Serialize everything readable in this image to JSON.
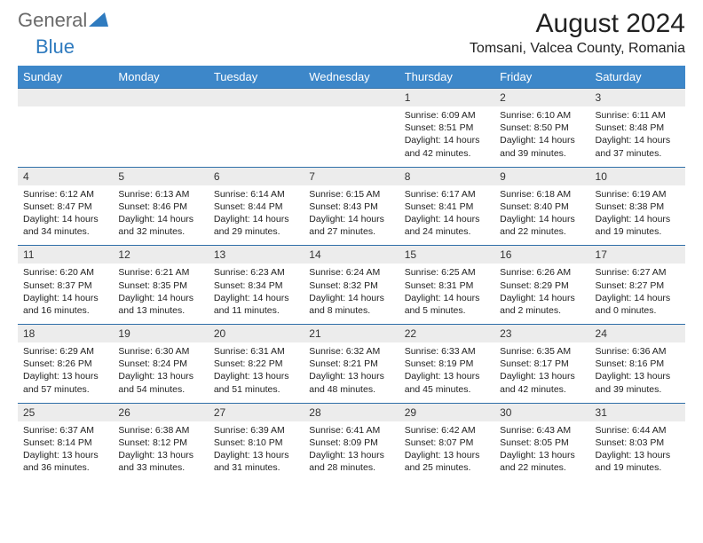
{
  "logo": {
    "general": "General",
    "blue": "Blue"
  },
  "title": "August 2024",
  "location": "Tomsani, Valcea County, Romania",
  "colors": {
    "header_bg": "#3d87c9",
    "header_text": "#ffffff",
    "daynum_bg": "#ececec",
    "row_border": "#2f6fa8",
    "logo_gray": "#6a6a6a",
    "logo_blue": "#2f7bbf"
  },
  "dayHeaders": [
    "Sunday",
    "Monday",
    "Tuesday",
    "Wednesday",
    "Thursday",
    "Friday",
    "Saturday"
  ],
  "weeks": [
    [
      null,
      null,
      null,
      null,
      {
        "n": "1",
        "sr": "6:09 AM",
        "ss": "8:51 PM",
        "dl": "14 hours and 42 minutes."
      },
      {
        "n": "2",
        "sr": "6:10 AM",
        "ss": "8:50 PM",
        "dl": "14 hours and 39 minutes."
      },
      {
        "n": "3",
        "sr": "6:11 AM",
        "ss": "8:48 PM",
        "dl": "14 hours and 37 minutes."
      }
    ],
    [
      {
        "n": "4",
        "sr": "6:12 AM",
        "ss": "8:47 PM",
        "dl": "14 hours and 34 minutes."
      },
      {
        "n": "5",
        "sr": "6:13 AM",
        "ss": "8:46 PM",
        "dl": "14 hours and 32 minutes."
      },
      {
        "n": "6",
        "sr": "6:14 AM",
        "ss": "8:44 PM",
        "dl": "14 hours and 29 minutes."
      },
      {
        "n": "7",
        "sr": "6:15 AM",
        "ss": "8:43 PM",
        "dl": "14 hours and 27 minutes."
      },
      {
        "n": "8",
        "sr": "6:17 AM",
        "ss": "8:41 PM",
        "dl": "14 hours and 24 minutes."
      },
      {
        "n": "9",
        "sr": "6:18 AM",
        "ss": "8:40 PM",
        "dl": "14 hours and 22 minutes."
      },
      {
        "n": "10",
        "sr": "6:19 AM",
        "ss": "8:38 PM",
        "dl": "14 hours and 19 minutes."
      }
    ],
    [
      {
        "n": "11",
        "sr": "6:20 AM",
        "ss": "8:37 PM",
        "dl": "14 hours and 16 minutes."
      },
      {
        "n": "12",
        "sr": "6:21 AM",
        "ss": "8:35 PM",
        "dl": "14 hours and 13 minutes."
      },
      {
        "n": "13",
        "sr": "6:23 AM",
        "ss": "8:34 PM",
        "dl": "14 hours and 11 minutes."
      },
      {
        "n": "14",
        "sr": "6:24 AM",
        "ss": "8:32 PM",
        "dl": "14 hours and 8 minutes."
      },
      {
        "n": "15",
        "sr": "6:25 AM",
        "ss": "8:31 PM",
        "dl": "14 hours and 5 minutes."
      },
      {
        "n": "16",
        "sr": "6:26 AM",
        "ss": "8:29 PM",
        "dl": "14 hours and 2 minutes."
      },
      {
        "n": "17",
        "sr": "6:27 AM",
        "ss": "8:27 PM",
        "dl": "14 hours and 0 minutes."
      }
    ],
    [
      {
        "n": "18",
        "sr": "6:29 AM",
        "ss": "8:26 PM",
        "dl": "13 hours and 57 minutes."
      },
      {
        "n": "19",
        "sr": "6:30 AM",
        "ss": "8:24 PM",
        "dl": "13 hours and 54 minutes."
      },
      {
        "n": "20",
        "sr": "6:31 AM",
        "ss": "8:22 PM",
        "dl": "13 hours and 51 minutes."
      },
      {
        "n": "21",
        "sr": "6:32 AM",
        "ss": "8:21 PM",
        "dl": "13 hours and 48 minutes."
      },
      {
        "n": "22",
        "sr": "6:33 AM",
        "ss": "8:19 PM",
        "dl": "13 hours and 45 minutes."
      },
      {
        "n": "23",
        "sr": "6:35 AM",
        "ss": "8:17 PM",
        "dl": "13 hours and 42 minutes."
      },
      {
        "n": "24",
        "sr": "6:36 AM",
        "ss": "8:16 PM",
        "dl": "13 hours and 39 minutes."
      }
    ],
    [
      {
        "n": "25",
        "sr": "6:37 AM",
        "ss": "8:14 PM",
        "dl": "13 hours and 36 minutes."
      },
      {
        "n": "26",
        "sr": "6:38 AM",
        "ss": "8:12 PM",
        "dl": "13 hours and 33 minutes."
      },
      {
        "n": "27",
        "sr": "6:39 AM",
        "ss": "8:10 PM",
        "dl": "13 hours and 31 minutes."
      },
      {
        "n": "28",
        "sr": "6:41 AM",
        "ss": "8:09 PM",
        "dl": "13 hours and 28 minutes."
      },
      {
        "n": "29",
        "sr": "6:42 AM",
        "ss": "8:07 PM",
        "dl": "13 hours and 25 minutes."
      },
      {
        "n": "30",
        "sr": "6:43 AM",
        "ss": "8:05 PM",
        "dl": "13 hours and 22 minutes."
      },
      {
        "n": "31",
        "sr": "6:44 AM",
        "ss": "8:03 PM",
        "dl": "13 hours and 19 minutes."
      }
    ]
  ],
  "labels": {
    "sunrise": "Sunrise:",
    "sunset": "Sunset:",
    "daylight": "Daylight:"
  }
}
